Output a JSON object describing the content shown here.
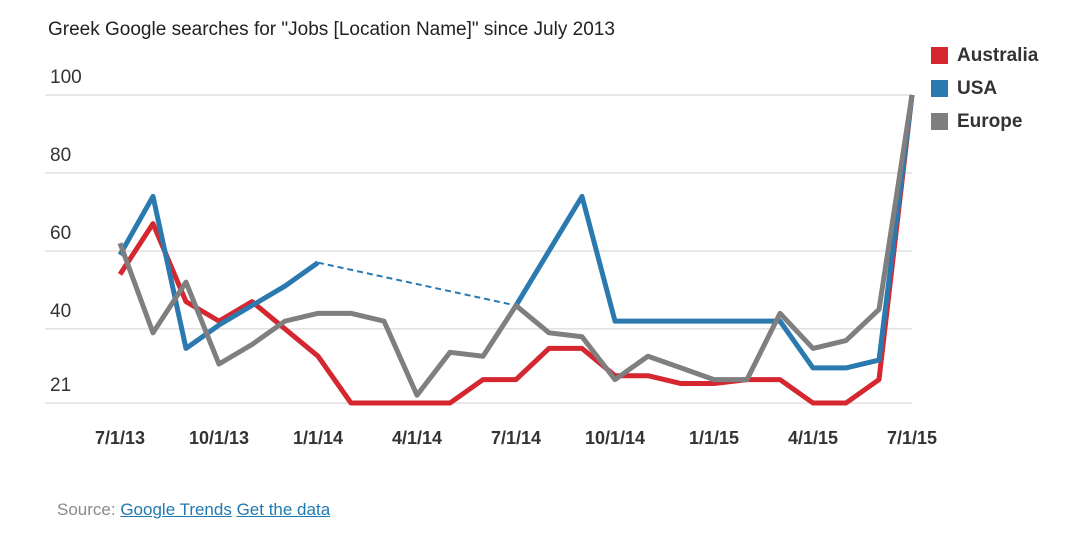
{
  "chart_data": {
    "type": "line",
    "title": "Greek Google searches for \"Jobs [Location Name]\" since July 2013",
    "categories": [
      "7/1/13",
      null,
      null,
      "10/1/13",
      null,
      null,
      "1/1/14",
      null,
      null,
      "4/1/14",
      null,
      null,
      "7/1/14",
      null,
      null,
      "10/1/14",
      null,
      null,
      "1/1/15",
      null,
      null,
      "4/1/15",
      null,
      null,
      "7/1/15"
    ],
    "series": [
      {
        "name": "Australia",
        "color": "#d4272f",
        "values": [
          54,
          67,
          47,
          42,
          47,
          40,
          33,
          21,
          21,
          21,
          21,
          27,
          27,
          35,
          35,
          28,
          28,
          26,
          26,
          27,
          27,
          21,
          21,
          27,
          100
        ]
      },
      {
        "name": "USA",
        "color": "#2a7ab0",
        "values": [
          59,
          74,
          35,
          41,
          46,
          51,
          57,
          null,
          null,
          null,
          null,
          null,
          46,
          60,
          74,
          42,
          42,
          42,
          42,
          42,
          42,
          30,
          30,
          32,
          100
        ]
      },
      {
        "name": "Europe",
        "color": "#7f7f7f",
        "values": [
          62,
          39,
          52,
          31,
          36,
          42,
          44,
          44,
          42,
          23,
          34,
          33,
          46,
          39,
          38,
          27,
          33,
          30,
          27,
          27,
          44,
          35,
          37,
          45,
          100
        ]
      }
    ],
    "ylim": [
      21,
      100
    ],
    "yticks": [
      21,
      40,
      60,
      80,
      100
    ],
    "grid": true,
    "gaps_dashed": true,
    "legend": "top-right",
    "source": {
      "label": "Source:",
      "links": [
        "Google Trends",
        "Get the data"
      ]
    }
  }
}
